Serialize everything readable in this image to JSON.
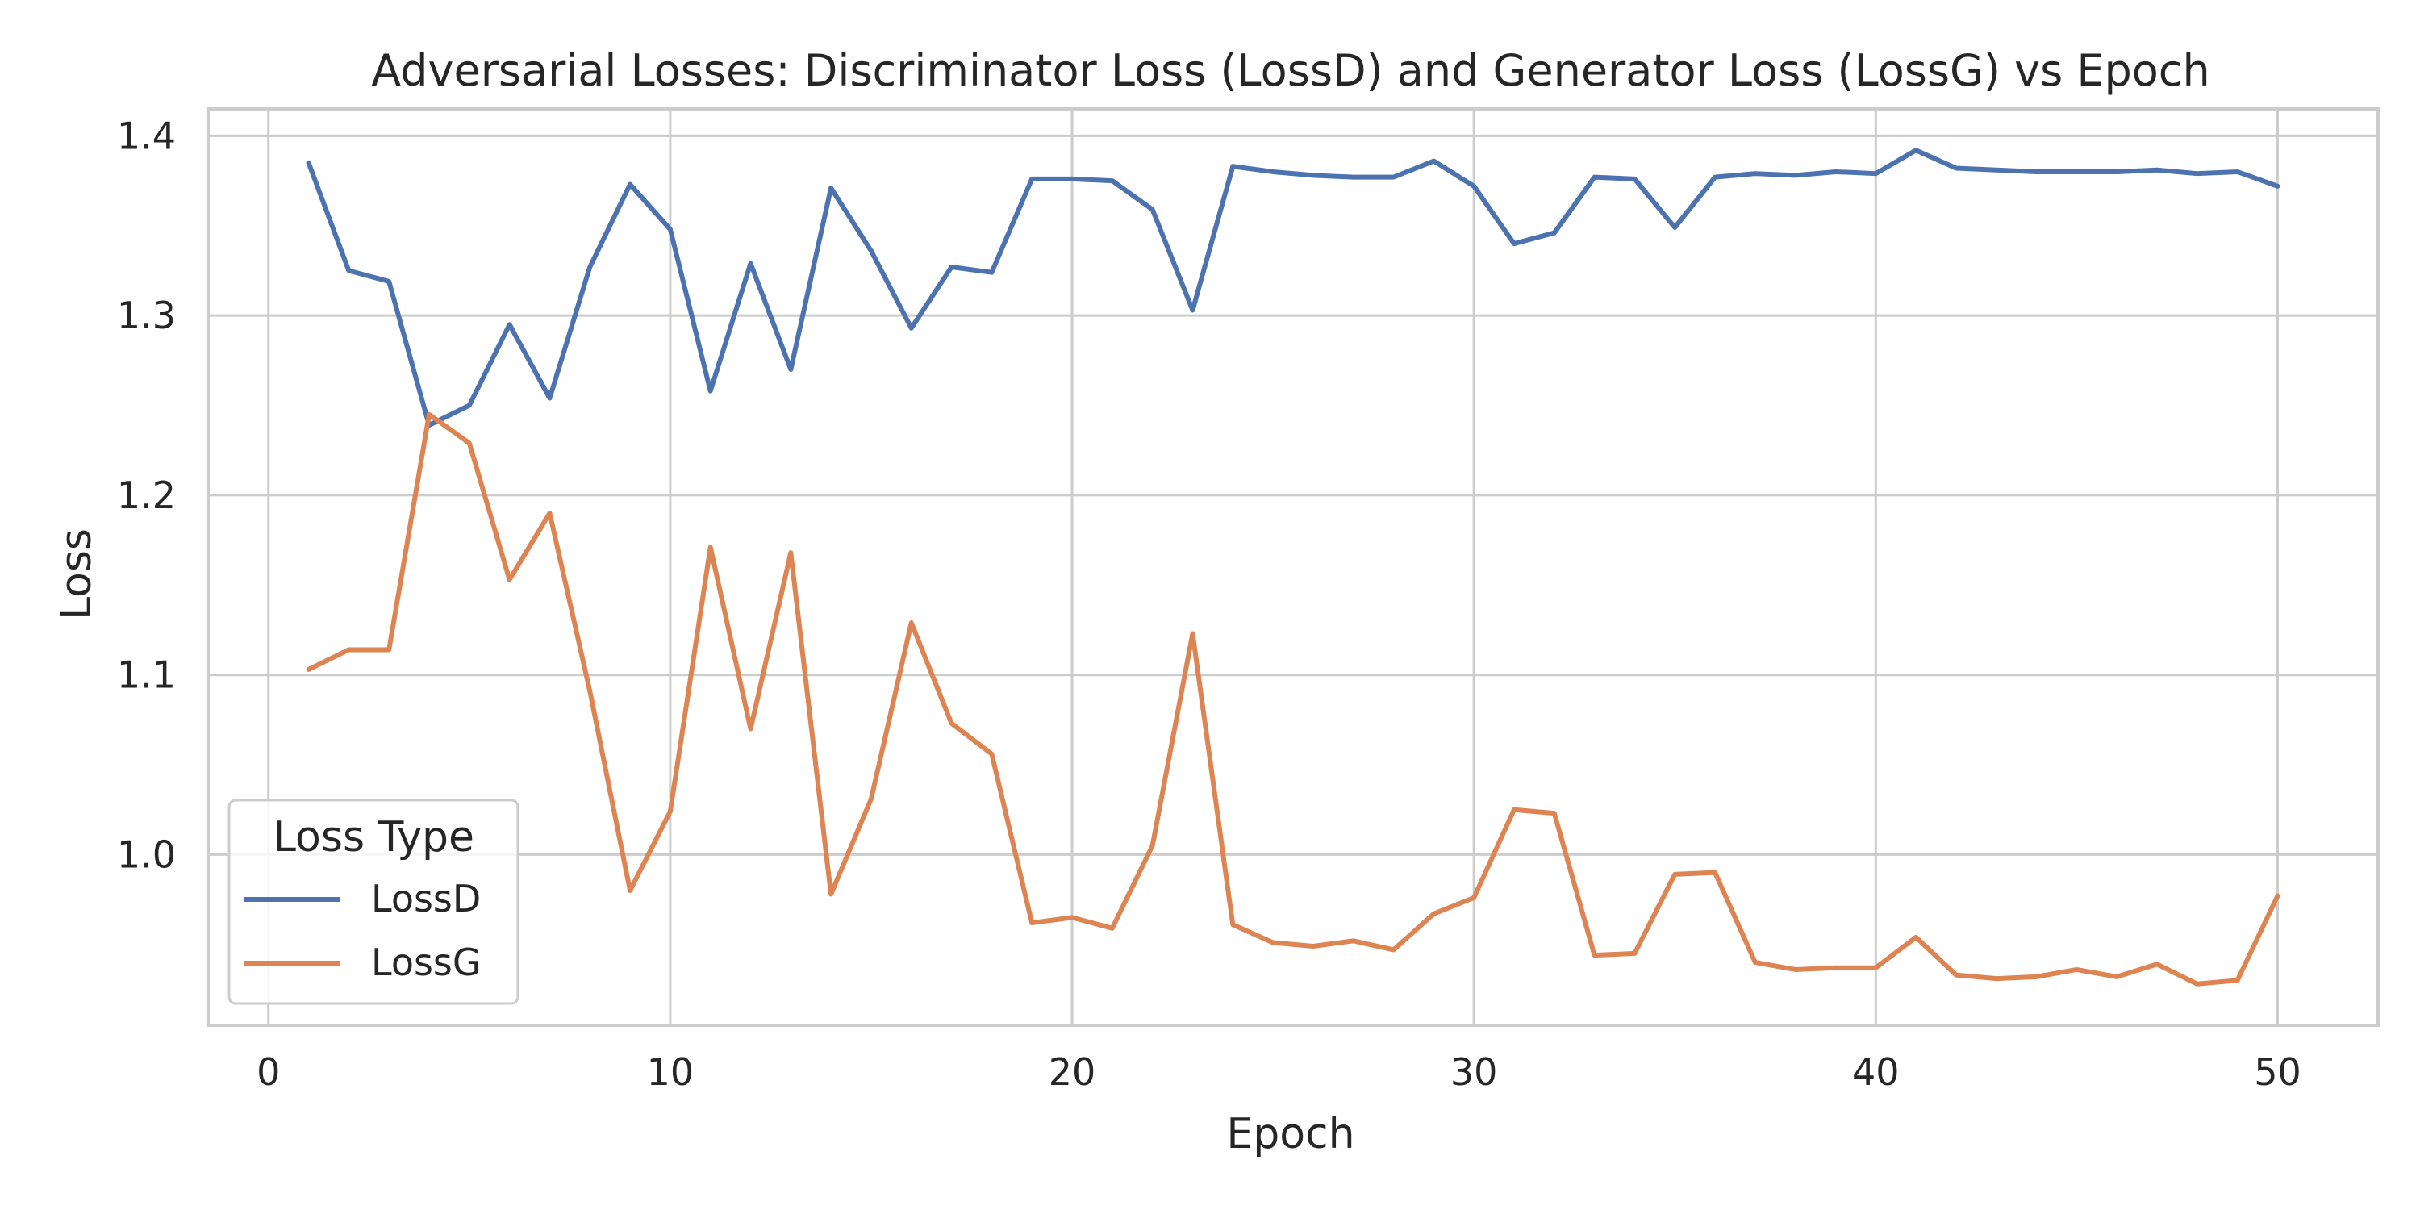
{
  "chart_data": {
    "type": "line",
    "title": "Adversarial Losses: Discriminator Loss (LossD) and Generator Loss (LossG) vs Epoch",
    "xlabel": "Epoch",
    "ylabel": "Loss",
    "xlim": [
      -1.5,
      52.5
    ],
    "ylim": [
      0.905,
      1.415
    ],
    "xticks": [
      0,
      10,
      20,
      30,
      40,
      50
    ],
    "yticks": [
      1.0,
      1.1,
      1.2,
      1.3,
      1.4
    ],
    "xtick_labels": [
      "0",
      "10",
      "20",
      "30",
      "40",
      "50"
    ],
    "ytick_labels": [
      "1.0",
      "1.1",
      "1.2",
      "1.3",
      "1.4"
    ],
    "grid": true,
    "legend": {
      "title": "Loss Type",
      "placement": "lower-left"
    },
    "x": [
      1,
      2,
      3,
      4,
      5,
      6,
      7,
      8,
      9,
      10,
      11,
      12,
      13,
      14,
      15,
      16,
      17,
      18,
      19,
      20,
      21,
      22,
      23,
      24,
      25,
      26,
      27,
      28,
      29,
      30,
      31,
      32,
      33,
      34,
      35,
      36,
      37,
      38,
      39,
      40,
      41,
      42,
      43,
      44,
      45,
      46,
      47,
      48,
      49,
      50
    ],
    "series": [
      {
        "name": "LossD",
        "color": "#4c72b0",
        "values": [
          1.385,
          1.325,
          1.319,
          1.239,
          1.25,
          1.295,
          1.254,
          1.327,
          1.373,
          1.348,
          1.258,
          1.329,
          1.27,
          1.371,
          1.336,
          1.293,
          1.327,
          1.324,
          1.376,
          1.376,
          1.375,
          1.359,
          1.303,
          1.383,
          1.38,
          1.378,
          1.377,
          1.377,
          1.386,
          1.372,
          1.34,
          1.346,
          1.377,
          1.376,
          1.349,
          1.377,
          1.379,
          1.378,
          1.38,
          1.379,
          1.392,
          1.382,
          1.381,
          1.38,
          1.38,
          1.38,
          1.381,
          1.379,
          1.38,
          1.372
        ]
      },
      {
        "name": "LossG",
        "color": "#dd8452",
        "values": [
          1.103,
          1.114,
          1.114,
          1.245,
          1.229,
          1.153,
          1.19,
          1.091,
          0.98,
          1.024,
          1.171,
          1.07,
          1.168,
          0.978,
          1.031,
          1.129,
          1.073,
          1.056,
          0.962,
          0.965,
          0.959,
          1.005,
          1.123,
          0.961,
          0.951,
          0.949,
          0.952,
          0.947,
          0.967,
          0.976,
          1.025,
          1.023,
          0.944,
          0.945,
          0.989,
          0.99,
          0.94,
          0.936,
          0.937,
          0.937,
          0.954,
          0.933,
          0.931,
          0.932,
          0.936,
          0.932,
          0.939,
          0.928,
          0.93,
          0.977
        ]
      }
    ],
    "styles": {
      "grid_color": "#cccccc",
      "axis_color": "#cccccc",
      "text_color": "#262626",
      "background": "#ffffff"
    }
  }
}
